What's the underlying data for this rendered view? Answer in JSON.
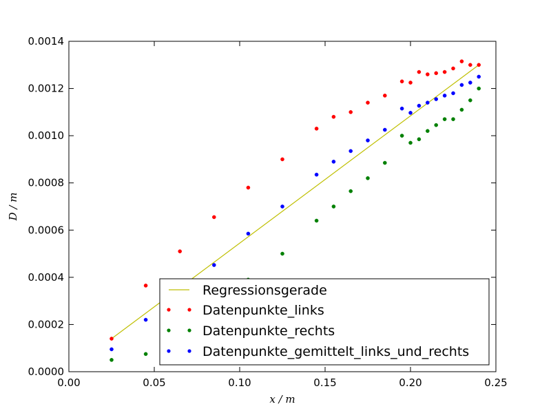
{
  "chart_data": {
    "type": "scatter",
    "xlabel": "x / m",
    "ylabel": "D / m",
    "xlim": [
      0.0,
      0.25
    ],
    "ylim": [
      0.0,
      0.0014
    ],
    "x_ticks": [
      "0.00",
      "0.05",
      "0.10",
      "0.15",
      "0.20",
      "0.25"
    ],
    "y_ticks": [
      "0.0000",
      "0.0002",
      "0.0004",
      "0.0006",
      "0.0008",
      "0.0010",
      "0.0012",
      "0.0014"
    ],
    "x_tick_values": [
      0.0,
      0.05,
      0.1,
      0.15,
      0.2,
      0.25
    ],
    "y_tick_values": [
      0.0,
      0.0002,
      0.0004,
      0.0006,
      0.0008,
      0.001,
      0.0012,
      0.0014
    ],
    "grid": false,
    "legend_position": "lower-right",
    "series": [
      {
        "name": "Regressionsgerade",
        "kind": "line",
        "color": "#bfbf00",
        "x": [
          0.025,
          0.24
        ],
        "y": [
          0.00014,
          0.0013
        ]
      },
      {
        "name": "Datenpunkte_links",
        "kind": "points",
        "color": "#ff0000",
        "x": [
          0.025,
          0.045,
          0.065,
          0.085,
          0.105,
          0.125,
          0.145,
          0.155,
          0.165,
          0.175,
          0.185,
          0.195,
          0.2,
          0.205,
          0.21,
          0.215,
          0.22,
          0.225,
          0.23,
          0.235,
          0.24
        ],
        "y": [
          0.00014,
          0.000365,
          0.00051,
          0.000655,
          0.00078,
          0.0009,
          0.00103,
          0.00108,
          0.0011,
          0.00114,
          0.00117,
          0.00123,
          0.001225,
          0.00127,
          0.00126,
          0.001265,
          0.00127,
          0.001285,
          0.001315,
          0.0013,
          0.0013
        ]
      },
      {
        "name": "Datenpunkte_rechts",
        "kind": "points",
        "color": "#008000",
        "x": [
          0.025,
          0.045,
          0.105,
          0.125,
          0.145,
          0.155,
          0.165,
          0.175,
          0.185,
          0.195,
          0.2,
          0.205,
          0.21,
          0.215,
          0.22,
          0.225,
          0.23,
          0.235,
          0.24
        ],
        "y": [
          5e-05,
          7.5e-05,
          0.00039,
          0.0005,
          0.00064,
          0.0007,
          0.000765,
          0.00082,
          0.000885,
          0.001,
          0.00097,
          0.000985,
          0.00102,
          0.001045,
          0.00107,
          0.00107,
          0.00111,
          0.00115,
          0.0012
        ]
      },
      {
        "name": "Datenpunkte_gemittelt_links_und_rechts",
        "kind": "points",
        "color": "#0000ff",
        "x": [
          0.025,
          0.045,
          0.085,
          0.105,
          0.125,
          0.145,
          0.155,
          0.165,
          0.175,
          0.185,
          0.195,
          0.2,
          0.205,
          0.21,
          0.215,
          0.22,
          0.225,
          0.23,
          0.235,
          0.24
        ],
        "y": [
          9.5e-05,
          0.00022,
          0.000452,
          0.000585,
          0.0007,
          0.000835,
          0.00089,
          0.000935,
          0.00098,
          0.001025,
          0.001115,
          0.001097,
          0.001127,
          0.00114,
          0.001155,
          0.00117,
          0.00118,
          0.001215,
          0.001225,
          0.00125
        ]
      }
    ]
  }
}
